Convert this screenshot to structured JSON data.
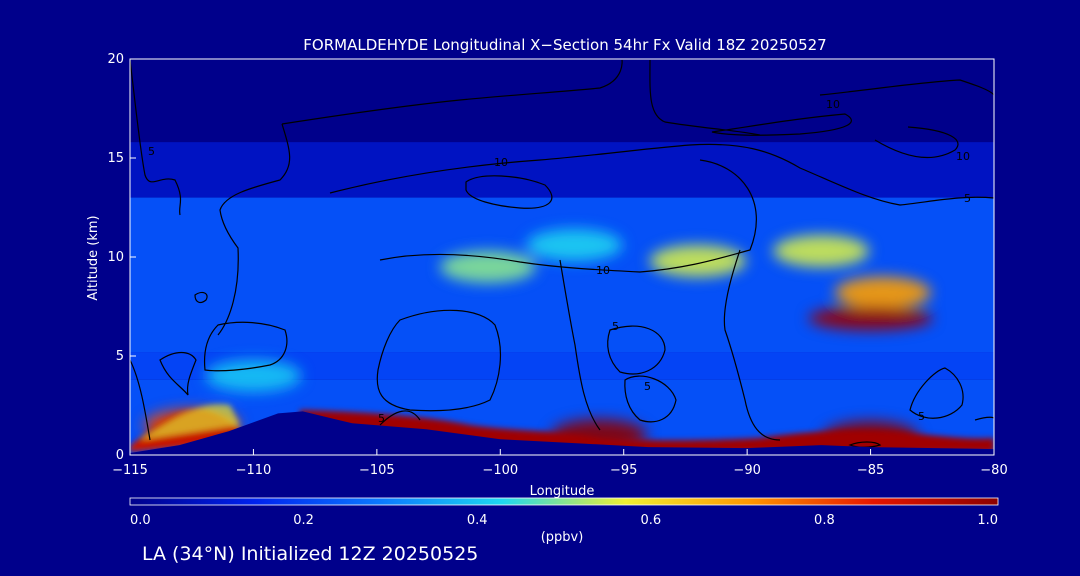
{
  "chart_data": {
    "type": "heatmap",
    "title": "FORMALDEHYDE Longitudinal X−Section 54hr  Fx Valid 18Z 20250527",
    "xlabel": "Longitude",
    "ylabel": "Altitude (km)",
    "xlim": [
      -115,
      -80
    ],
    "ylim": [
      0,
      20
    ],
    "x_ticks": [
      -115,
      -110,
      -105,
      -100,
      -95,
      -90,
      -85,
      -80
    ],
    "x_tick_labels": [
      "−115",
      "−110",
      "−105",
      "−100",
      "−95",
      "−90",
      "−85",
      "−80"
    ],
    "y_ticks": [
      0,
      5,
      10,
      15,
      20
    ],
    "y_tick_labels": [
      "0",
      "5",
      "10",
      "15",
      "20"
    ],
    "grid": false,
    "colorbar": {
      "min": 0.0,
      "max": 1.0,
      "ticks": [
        0.0,
        0.2,
        0.4,
        0.6,
        0.8,
        1.0
      ],
      "tick_labels": [
        "0.0",
        "0.2",
        "0.4",
        "0.6",
        "0.8",
        "1.0"
      ],
      "unit_label": "(ppbv)",
      "colors": [
        "#00008b",
        "#0022ee",
        "#0a78ff",
        "#1ed8f0",
        "#f0f032",
        "#ff9600",
        "#e61400",
        "#8c0000"
      ]
    },
    "contour_labels": [
      "5",
      "10",
      "10",
      "10",
      "10",
      "5",
      "5",
      "5",
      "5",
      "5"
    ],
    "levels": [
      {
        "top_km": 20,
        "bottom_km": 15.8,
        "value": 0.0
      },
      {
        "top_km": 15.8,
        "bottom_km": 13,
        "value": 0.08
      },
      {
        "top_km": 13,
        "bottom_km": 5.2,
        "value": 0.22
      },
      {
        "top_km": 5.2,
        "bottom_km": 3.8,
        "value": 0.2
      },
      {
        "top_km": 3.8,
        "bottom_km": 0,
        "value": 0.22
      }
    ],
    "features": [
      {
        "lon": -100.5,
        "alt_km": 9.5,
        "value": 0.5
      },
      {
        "lon": -97,
        "alt_km": 10.6,
        "value": 0.42
      },
      {
        "lon": -92,
        "alt_km": 9.8,
        "value": 0.55
      },
      {
        "lon": -87,
        "alt_km": 10.3,
        "value": 0.55
      },
      {
        "lon": -84.5,
        "alt_km": 8.2,
        "value": 0.7
      },
      {
        "lon": -85,
        "alt_km": 6.9,
        "value": 0.98
      },
      {
        "lon": -110,
        "alt_km": 4.0,
        "value": 0.4
      },
      {
        "lon": -112.5,
        "alt_km": 1.5,
        "value": 0.8
      },
      {
        "lon": -96,
        "alt_km": 1.0,
        "value": 1.0
      },
      {
        "lon": -85,
        "alt_km": 0.9,
        "value": 1.0
      }
    ],
    "terrain_km": [
      [
        -115,
        0.1
      ],
      [
        -113,
        0.5
      ],
      [
        -111,
        1.2
      ],
      [
        -109,
        2.1
      ],
      [
        -108,
        2.2
      ],
      [
        -106,
        1.6
      ],
      [
        -103,
        1.3
      ],
      [
        -100,
        0.8
      ],
      [
        -97,
        0.6
      ],
      [
        -94,
        0.4
      ],
      [
        -90,
        0.35
      ],
      [
        -87,
        0.5
      ],
      [
        -85,
        0.4
      ],
      [
        -80,
        0.3
      ]
    ]
  },
  "footer": {
    "caption": "LA (34°N) Initialized 12Z 20250525"
  }
}
